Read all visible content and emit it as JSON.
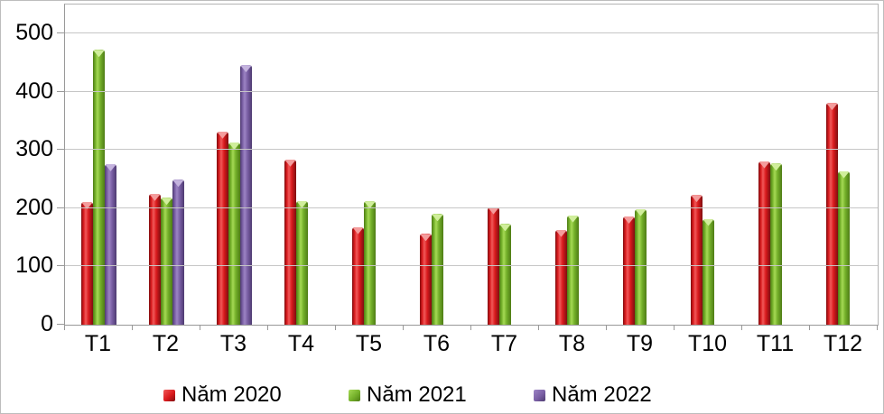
{
  "chart_data": {
    "type": "bar",
    "title": "",
    "xlabel": "",
    "ylabel": "",
    "categories": [
      "T1",
      "T2",
      "T3",
      "T4",
      "T5",
      "T6",
      "T7",
      "T8",
      "T9",
      "T10",
      "T11",
      "T12"
    ],
    "series": [
      {
        "name": "Năm 2020",
        "color": "#da1a1d",
        "color_dark": "#7e0e10",
        "color_light": "#f05a5a",
        "color_cap": "#f49c9c",
        "values": [
          211,
          225,
          332,
          284,
          168,
          156,
          202,
          163,
          186,
          223,
          281,
          381
        ]
      },
      {
        "name": "Năm 2021",
        "color": "#74b02a",
        "color_dark": "#4e7c15",
        "color_light": "#a6da55",
        "color_cap": "#d0ee9b",
        "values": [
          472,
          218,
          313,
          213,
          212,
          190,
          173,
          188,
          199,
          182,
          277,
          264
        ]
      },
      {
        "name": "Năm 2022",
        "color": "#7a5fa5",
        "color_dark": "#4d3a70",
        "color_light": "#9c84c4",
        "color_cap": "#c4b3de",
        "values": [
          276,
          249,
          446,
          null,
          null,
          null,
          null,
          null,
          null,
          null,
          null,
          null
        ]
      }
    ],
    "y_axis": {
      "ticks": [
        0,
        100,
        200,
        300,
        400,
        500
      ],
      "ylim": [
        0,
        550
      ],
      "max": 550
    },
    "grid": true,
    "legend_position": "bottom",
    "legend_x_positions": [
      180,
      385,
      590
    ],
    "colors": {
      "axis": "#999999",
      "gridline": "#c6c6c6",
      "border": "#bdbdbd",
      "text": "#000000",
      "background": "#ffffff"
    }
  }
}
